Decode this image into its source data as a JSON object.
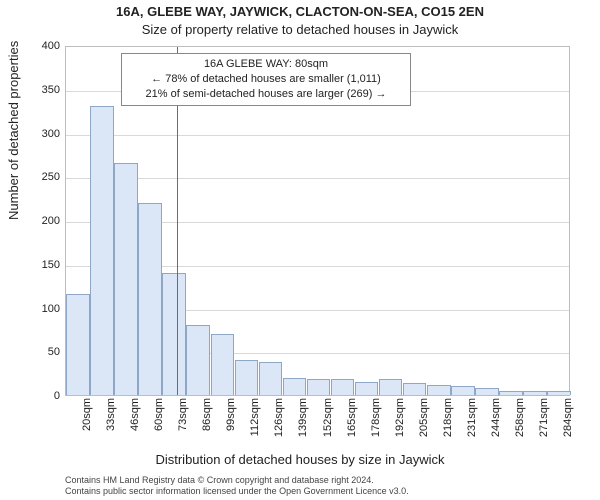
{
  "title": "16A, GLEBE WAY, JAYWICK, CLACTON-ON-SEA, CO15 2EN",
  "subtitle": "Size of property relative to detached houses in Jaywick",
  "ylabel": "Number of detached properties",
  "xlabel": "Distribution of detached houses by size in Jaywick",
  "footer_line1": "Contains HM Land Registry data © Crown copyright and database right 2024.",
  "footer_line2": "Contains public sector information licensed under the Open Government Licence v3.0.",
  "chart": {
    "type": "histogram",
    "ylim": [
      0,
      400
    ],
    "ytick_step": 50,
    "background_color": "#ffffff",
    "grid_color": "#d9d9d9",
    "axis_color": "#bdbdbd",
    "bar_fill": "#dbe7f6",
    "bar_stroke": "#8fa7c6",
    "refline_color": "#e53935",
    "refline_x": 80,
    "x_start": 20,
    "x_step": 13,
    "bin_count": 21,
    "values": [
      115,
      330,
      265,
      220,
      140,
      80,
      70,
      40,
      38,
      20,
      18,
      18,
      15,
      18,
      14,
      12,
      10,
      8,
      5,
      5,
      5
    ],
    "x_labels": [
      "20sqm",
      "33sqm",
      "46sqm",
      "60sqm",
      "73sqm",
      "86sqm",
      "99sqm",
      "112sqm",
      "126sqm",
      "139sqm",
      "152sqm",
      "165sqm",
      "178sqm",
      "192sqm",
      "205sqm",
      "218sqm",
      "231sqm",
      "244sqm",
      "258sqm",
      "271sqm",
      "284sqm"
    ],
    "label_fontsize": 11,
    "title_fontsize": 13
  },
  "annotation": {
    "line1": "16A GLEBE WAY: 80sqm",
    "line2": "← 78% of detached houses are smaller (1,011)",
    "line3": "21% of semi-detached houses are larger (269) →",
    "box_border": "#888888",
    "box_bg": "#ffffff"
  }
}
